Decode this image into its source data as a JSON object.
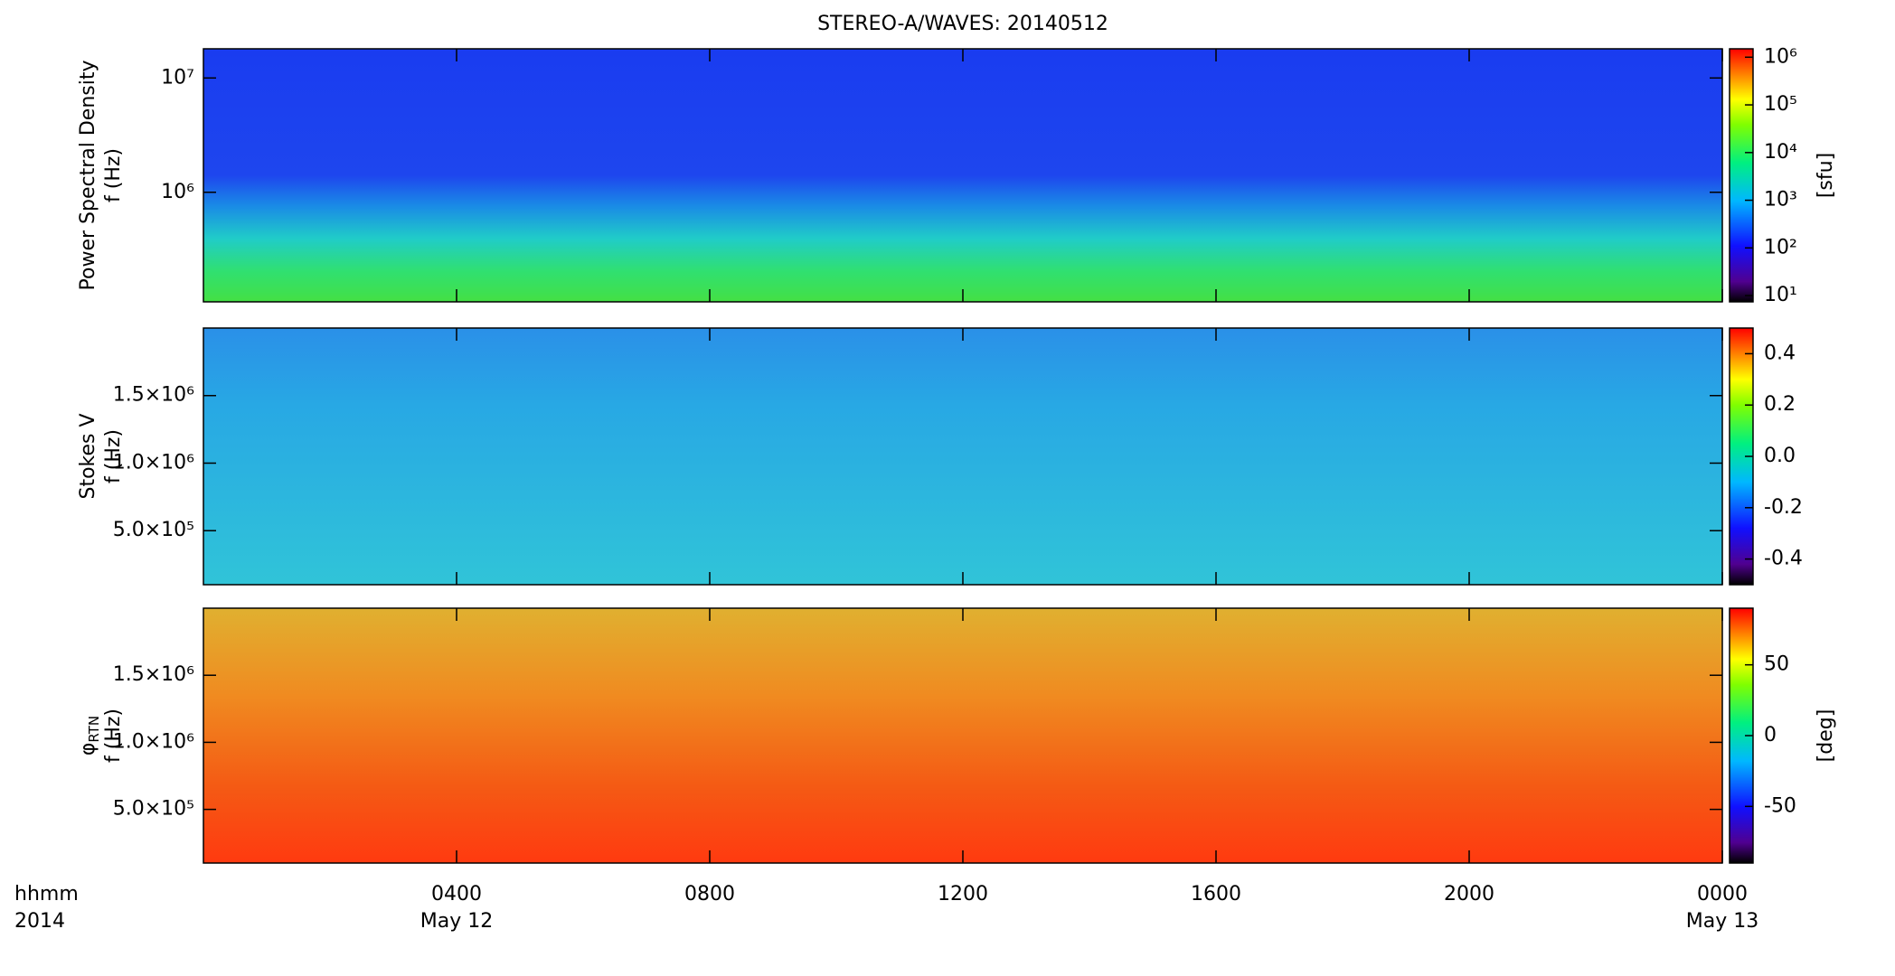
{
  "chart_data": [
    {
      "type": "spectrogram",
      "title": "STEREO-A/WAVES: 20140512",
      "ylabel": "Power Spectral Density",
      "ylabel2": "f (Hz)",
      "xlim": [
        0,
        24
      ],
      "ylim": [
        110000,
        18000000
      ],
      "log_y": true,
      "yticks": [
        {
          "value": 1000000,
          "label": "10⁶"
        },
        {
          "value": 10000000,
          "label": "10⁷"
        }
      ],
      "colorbar": {
        "lim": [
          7.4,
          1500000
        ],
        "log": true,
        "label": "[sfu]",
        "ticks": [
          {
            "value": 10,
            "label": "10¹"
          },
          {
            "value": 100,
            "label": "10²"
          },
          {
            "value": 1000,
            "label": "10³"
          },
          {
            "value": 10000,
            "label": "10⁴"
          },
          {
            "value": 100000,
            "label": "10⁵"
          },
          {
            "value": 1000000,
            "label": "10⁶"
          }
        ]
      }
    },
    {
      "type": "spectrogram",
      "ylabel": "Stokes V",
      "ylabel2": "f (Hz)",
      "xlim": [
        0,
        24
      ],
      "ylim": [
        100000,
        2000000
      ],
      "log_y": false,
      "yticks": [
        {
          "value": 500000,
          "label": "5.0×10⁵"
        },
        {
          "value": 1000000,
          "label": "1.0×10⁶"
        },
        {
          "value": 1500000,
          "label": "1.5×10⁶"
        }
      ],
      "colorbar": {
        "lim": [
          -0.5,
          0.5
        ],
        "log": false,
        "ticks": [
          -0.4,
          -0.2,
          {
            "value": 0,
            "label": "0.0"
          },
          0.2,
          0.4
        ]
      }
    },
    {
      "type": "spectrogram",
      "ylabel": "φ",
      "ylabel_sub": "RTN",
      "ylabel2": "f (Hz)",
      "xlim": [
        0,
        24
      ],
      "ylim": [
        100000,
        2000000
      ],
      "log_y": false,
      "yticks": [
        {
          "value": 500000,
          "label": "5.0×10⁵"
        },
        {
          "value": 1000000,
          "label": "1.0×10⁶"
        },
        {
          "value": 1500000,
          "label": "1.5×10⁶"
        }
      ],
      "colorbar": {
        "lim": [
          -90,
          90
        ],
        "log": false,
        "label": "[deg]",
        "ticks": [
          -50,
          0,
          50
        ]
      },
      "xlabel": "hhmm",
      "xlabel2": "2014",
      "xticks": [
        {
          "value": 4,
          "label": "0400"
        },
        {
          "value": 8,
          "label": "0800"
        },
        {
          "value": 12,
          "label": "1200"
        },
        {
          "value": 16,
          "label": "1600"
        },
        {
          "value": 20,
          "label": "2000"
        },
        {
          "value": 24,
          "label": "0000"
        }
      ],
      "x_sublabels": [
        {
          "value": 4,
          "label": "May 12"
        },
        {
          "value": 24,
          "label": "May 13"
        }
      ]
    }
  ]
}
